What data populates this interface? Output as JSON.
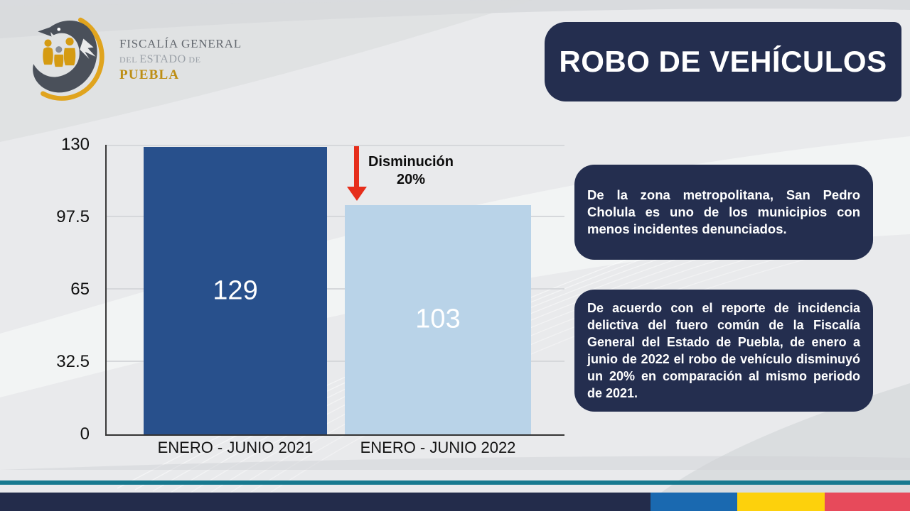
{
  "logo": {
    "line1": "FISCALÍA GENERAL",
    "line2_parts": [
      "DEL",
      "ESTADO",
      "DE"
    ],
    "line3": "PUEBLA"
  },
  "header": {
    "title": "ROBO DE VEHÍCULOS"
  },
  "chart_data": {
    "type": "bar",
    "title": "",
    "categories": [
      "ENERO - JUNIO 2021",
      "ENERO - JUNIO 2022"
    ],
    "values": [
      129,
      103
    ],
    "bar_colors": [
      "#28508c",
      "#b9d3e8"
    ],
    "value_label_color": "#ffffff",
    "ylim": [
      0,
      130
    ],
    "yticks": [
      0,
      32.5,
      65,
      97.5,
      130
    ],
    "grid": true,
    "legend": "none",
    "annotation": {
      "line1": "Disminución",
      "line2": "20%",
      "arrow_color": "#e62e1b",
      "arrow_points_to": "ENERO - JUNIO 2022"
    }
  },
  "info_boxes": [
    {
      "text": "De la zona metropolitana, San Pedro Cholula es uno de los municipios con menos incidentes denunciados."
    },
    {
      "text": "De acuerdo con el reporte de incidencia delictiva del fuero común de la Fiscalía General del Estado de Puebla, de enero a junio de 2022 el robo de vehículo disminuyó un 20% en comparación al mismo periodo de 2021."
    }
  ],
  "footer": {
    "accent_line_color": "#17798f",
    "bar_color": "#232c4b",
    "blocks": [
      {
        "color": "#1a69b0"
      },
      {
        "color": "#fdd10c"
      },
      {
        "color": "#e74a5b"
      }
    ]
  },
  "theme": {
    "box_navy": "#242e4f",
    "background": "#e9eaec"
  }
}
